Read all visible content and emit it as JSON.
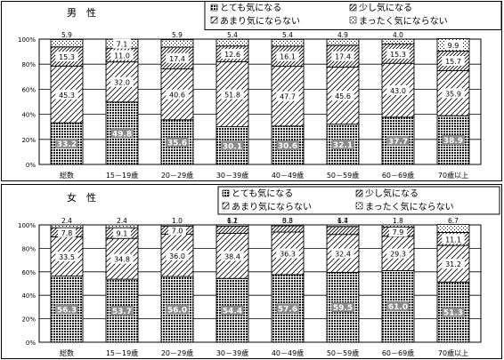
{
  "chart_data": [
    {
      "type": "bar",
      "stacked": true,
      "orientation": "vertical",
      "title": "男　性",
      "unit": "%",
      "ylim": [
        0,
        100
      ],
      "yticks": [
        "0%",
        "20%",
        "40%",
        "60%",
        "80%",
        "100%"
      ],
      "grid": true,
      "legend_position": "top-right",
      "categories": [
        "総数",
        "15－19歳",
        "20－29歳",
        "30－39歳",
        "40－49歳",
        "50－59歳",
        "60－69歳",
        "70歳以上"
      ],
      "series": [
        {
          "name": "とても気になる",
          "values": [
            33.2,
            49.8,
            35.6,
            30.1,
            30.6,
            32.1,
            37.7,
            38.9
          ]
        },
        {
          "name": "あまり気にならない",
          "values": [
            45.3,
            32.0,
            40.6,
            51.8,
            47.7,
            45.6,
            43.0,
            35.9
          ]
        },
        {
          "name": "少し気になる",
          "values": [
            15.3,
            11.0,
            17.4,
            12.6,
            16.1,
            17.4,
            15.3,
            15.7
          ]
        },
        {
          "name": "まったく気にならない",
          "values": [
            5.9,
            7.1,
            5.9,
            5.4,
            5.4,
            4.9,
            4.0,
            9.9
          ]
        }
      ]
    },
    {
      "type": "bar",
      "stacked": true,
      "orientation": "vertical",
      "title": "女　性",
      "unit": "%",
      "ylim": [
        0,
        100
      ],
      "yticks": [
        "0%",
        "20%",
        "40%",
        "60%",
        "80%",
        "100%"
      ],
      "grid": true,
      "legend_position": "top-right",
      "categories": [
        "総数",
        "15－19歳",
        "20－29歳",
        "30－39歳",
        "40－49歳",
        "50－59歳",
        "60－69歳",
        "70歳以上"
      ],
      "series": [
        {
          "name": "とても気になる",
          "values": [
            56.3,
            53.7,
            56.0,
            54.4,
            57.6,
            59.5,
            61.0,
            51.3
          ]
        },
        {
          "name": "あまり気にならない",
          "values": [
            33.5,
            34.8,
            36.0,
            38.4,
            36.3,
            32.4,
            29.3,
            31.2
          ]
        },
        {
          "name": "少し気になる",
          "values": [
            7.8,
            9.1,
            7.0,
            6.2,
            5.3,
            6.7,
            7.9,
            11.1
          ]
        },
        {
          "name": "まったく気にならない",
          "values": [
            2.4,
            2.4,
            1.0,
            1.1,
            0.8,
            1.4,
            1.8,
            6.7
          ]
        }
      ]
    }
  ],
  "legend": [
    {
      "name": "とても気になる",
      "pattern": "dots"
    },
    {
      "name": "少し気になる",
      "pattern": "diagonal"
    },
    {
      "name": "あまり気にならない",
      "pattern": "diagonal"
    },
    {
      "name": "まったく気にならない",
      "pattern": "dots"
    }
  ],
  "colors": {
    "ink": "#000000",
    "background": "#ffffff",
    "dot_fill": "#8c8c8c"
  }
}
